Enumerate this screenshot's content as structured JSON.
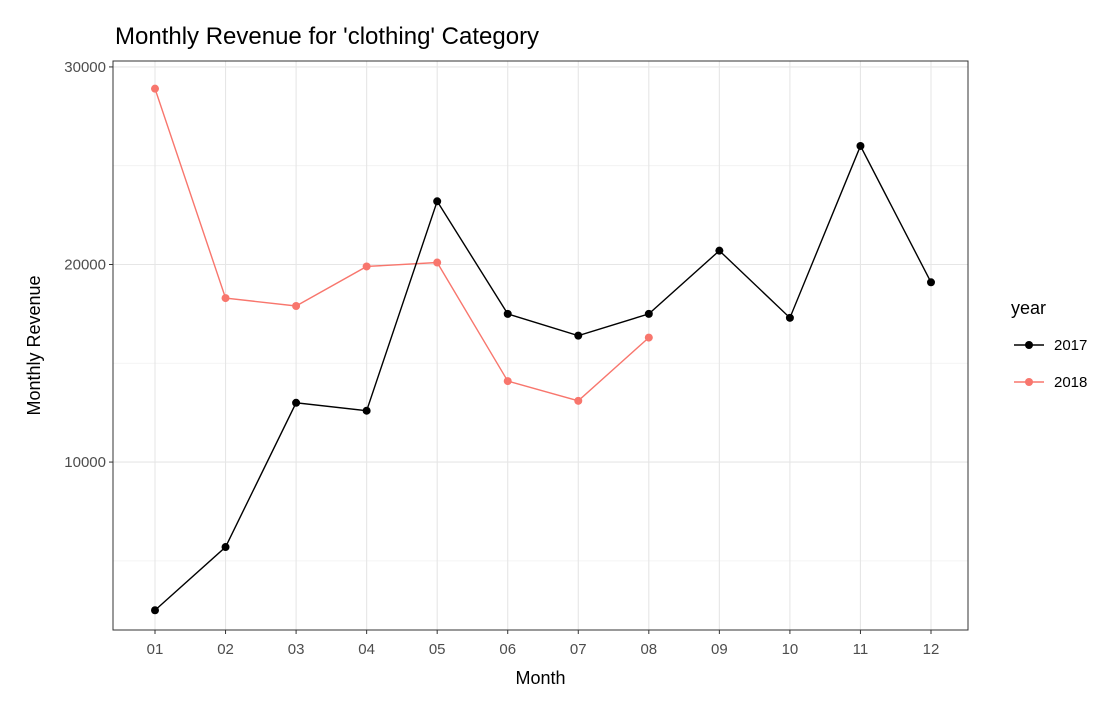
{
  "chart_data": {
    "type": "line",
    "title": "Monthly Revenue for 'clothing' Category",
    "xlabel": "Month",
    "ylabel": "Monthly Revenue",
    "categories": [
      "01",
      "02",
      "03",
      "04",
      "05",
      "06",
      "07",
      "08",
      "09",
      "10",
      "11",
      "12"
    ],
    "ylim": [
      1500,
      30300
    ],
    "yticks": [
      10000,
      20000,
      30000
    ],
    "ytick_labels": [
      "10000",
      "20000",
      "30000"
    ],
    "y_minor_gridlines": [
      5000,
      15000,
      25000
    ],
    "grid": true,
    "legend": {
      "title": "year",
      "position": "right"
    },
    "series": [
      {
        "name": "2017",
        "color": "#000000",
        "values": [
          2500,
          5700,
          13000,
          12600,
          23200,
          17500,
          16400,
          17500,
          20700,
          17300,
          26000,
          19100
        ]
      },
      {
        "name": "2018",
        "color": "#F8766D",
        "values": [
          28900,
          18300,
          17900,
          19900,
          20100,
          14100,
          13100,
          16300,
          null,
          null,
          null,
          null
        ]
      }
    ]
  }
}
